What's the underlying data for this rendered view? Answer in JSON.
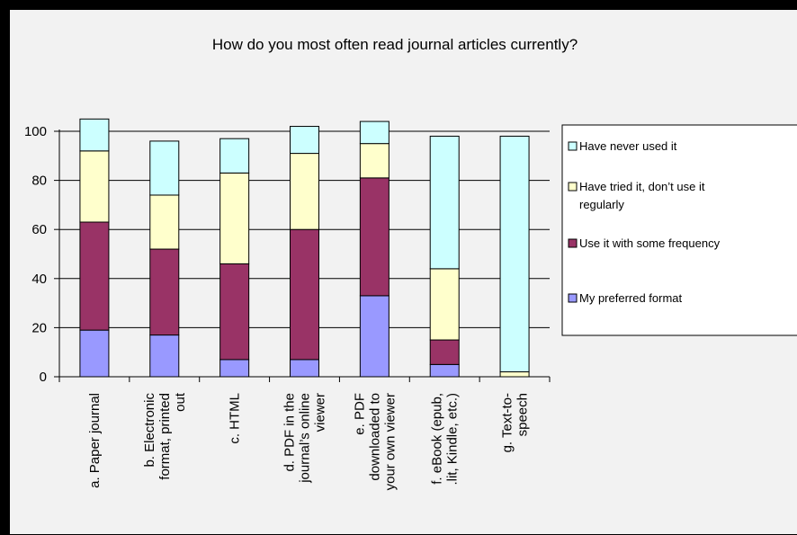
{
  "chart_data": {
    "type": "bar",
    "stacked": true,
    "title": "How do you most often read journal articles currently?",
    "categories": [
      [
        "a. Paper journal"
      ],
      [
        "b. Electronic",
        "format, printed",
        "out"
      ],
      [
        "c. HTML"
      ],
      [
        "d. PDF in the",
        "journal’s online",
        "viewer"
      ],
      [
        "e. PDF",
        "downloaded to",
        "your own viewer"
      ],
      [
        "f. eBook (epub,",
        ".lit, Kindle, etc.)"
      ],
      [
        "g. Text-to-",
        "speech"
      ]
    ],
    "series": [
      {
        "name": "My preferred format",
        "color": "#9999ff",
        "values": [
          19,
          17,
          7,
          7,
          33,
          5,
          0
        ]
      },
      {
        "name": "Use it with some frequency",
        "color": "#993366",
        "values": [
          44,
          35,
          39,
          53,
          48,
          10,
          0
        ]
      },
      {
        "name": "Have tried it, don’t use it regularly",
        "color": "#ffffcc",
        "values": [
          29,
          22,
          37,
          31,
          14,
          29,
          2
        ]
      },
      {
        "name": "Have never used it",
        "color": "#ccffff",
        "values": [
          13,
          22,
          14,
          11,
          9,
          54,
          96
        ]
      }
    ],
    "legend_order": [
      3,
      2,
      1,
      0
    ],
    "legend_label_lines": {
      "3": [
        "Have never used it"
      ],
      "2": [
        "Have tried  it, don’t use it",
        "regularly"
      ],
      "1": [
        "Use it with some frequency"
      ],
      "0": [
        "My preferred format"
      ]
    },
    "ylim": [
      0,
      100
    ],
    "yticks": [
      0,
      20,
      40,
      60,
      80,
      100
    ],
    "grid": true,
    "legend_position": "right"
  }
}
